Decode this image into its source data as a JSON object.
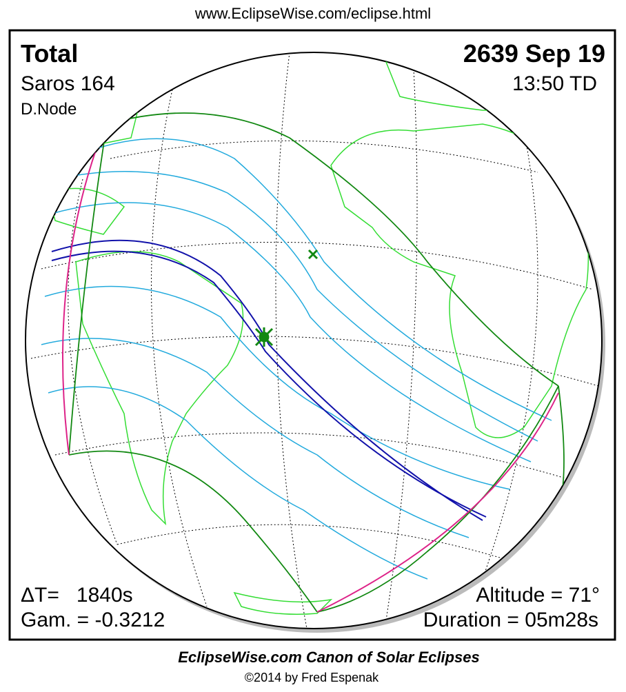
{
  "header": {
    "url": "www.EclipseWise.com/eclipse.html"
  },
  "panel": {
    "eclipse_type": "Total",
    "saros": "Saros 164",
    "node": "D.Node",
    "date": "2639 Sep 19",
    "time": "13:50 TD",
    "delta_t": "ΔT=   1840s",
    "gamma": "Gam. = -0.3212",
    "altitude": "Altitude = 71°",
    "duration": "Duration = 05m28s"
  },
  "footer": {
    "title": "EclipseWise.com Canon of Solar Eclipses",
    "credit": "©2014 by Fred Espenak"
  }
}
